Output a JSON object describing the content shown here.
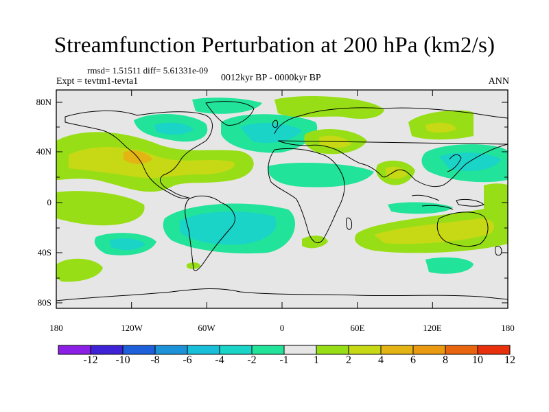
{
  "header": {
    "title": "Streamfunction Perturbation at 200 hPa (km2/s)",
    "stats": "rmsd= 1.51511 diff= 5.61331e-09",
    "experiment": "Expt = tevtm1-tevta1",
    "period": "0012kyr BP - 0000kyr BP",
    "season": "ANN"
  },
  "map": {
    "lat_ticks": [
      "80N",
      "40N",
      "0",
      "40S",
      "80S"
    ],
    "lon_ticks": [
      "180",
      "120W",
      "60W",
      "0",
      "60E",
      "120E",
      "180"
    ],
    "background_color": "#e6e6e6"
  },
  "colorbar": {
    "labels": [
      "-12",
      "-10",
      "-8",
      "-6",
      "-4",
      "-2",
      "-1",
      "1",
      "2",
      "4",
      "6",
      "8",
      "10",
      "12"
    ],
    "colors": [
      "#8b1fe6",
      "#3e22d6",
      "#1e5fdc",
      "#1c93d8",
      "#19bed9",
      "#19d4c7",
      "#22e39a",
      "#e6e6e6",
      "#98de17",
      "#c6d914",
      "#e3b413",
      "#e99a10",
      "#e8650e",
      "#e8300c"
    ]
  }
}
